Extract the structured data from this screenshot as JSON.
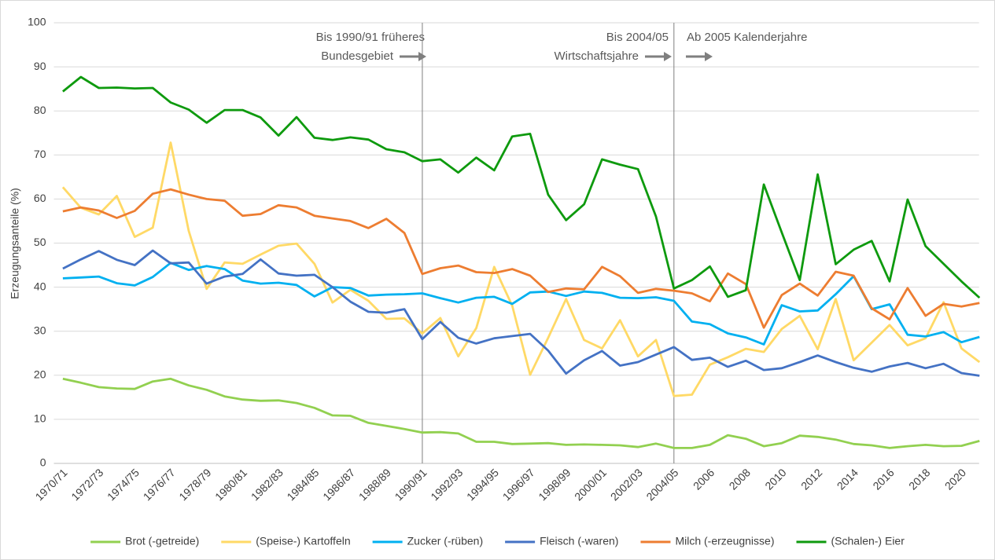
{
  "chart_data": {
    "type": "line",
    "y_label": "Erzeugungsanteile (%)",
    "annotations": [
      "Bis 1990/91 früheres",
      "Bundesgebiet",
      "Bis 2004/05",
      "Wirtschaftsjahre",
      "Ab 2005 Kalenderjahre"
    ],
    "dividers": [
      "1990/91",
      "2004/05"
    ],
    "categories": [
      "1970/71",
      null,
      "1972/73",
      null,
      "1974/75",
      null,
      "1976/77",
      null,
      "1978/79",
      null,
      "1980/81",
      null,
      "1982/83",
      null,
      "1984/85",
      null,
      "1986/87",
      null,
      "1988/89",
      null,
      "1990/91",
      null,
      "1992/93",
      null,
      "1994/95",
      null,
      "1996/97",
      null,
      "1998/99",
      null,
      "2000/01",
      null,
      "2002/03",
      null,
      "2004/05",
      null,
      "2006",
      null,
      "2008",
      null,
      "2010",
      null,
      "2012",
      null,
      "2014",
      null,
      "2016",
      null,
      "2018",
      null,
      "2020",
      null
    ],
    "ylim": [
      0,
      100
    ],
    "yticks": [
      0,
      10,
      20,
      30,
      40,
      50,
      60,
      70,
      80,
      90,
      100
    ],
    "grid": true,
    "legend": "bottom",
    "series": [
      {
        "name": "Brot (-getreide)",
        "color": "#92d050",
        "values": [
          19.2,
          18.3,
          17.3,
          17.0,
          16.9,
          18.6,
          19.2,
          17.7,
          16.7,
          15.2,
          14.5,
          14.2,
          14.3,
          13.7,
          12.6,
          10.9,
          10.8,
          9.2,
          8.5,
          7.8,
          7.0,
          7.1,
          6.8,
          4.9,
          4.9,
          4.4,
          4.5,
          4.6,
          4.2,
          4.3,
          4.2,
          4.1,
          3.7,
          4.5,
          3.5,
          3.5,
          4.2,
          6.4,
          5.6,
          3.9,
          4.6,
          6.3,
          6.0,
          5.4,
          4.4,
          4.1,
          3.5,
          3.9,
          4.2,
          3.9,
          4.0,
          5.1
        ]
      },
      {
        "name": "(Speise-) Kartoffeln",
        "color": "#ffd966",
        "values": [
          62.7,
          58.0,
          56.5,
          60.7,
          51.4,
          53.5,
          72.8,
          52.8,
          39.6,
          45.6,
          45.3,
          47.4,
          49.4,
          49.9,
          45.3,
          36.5,
          39.4,
          36.9,
          32.8,
          32.9,
          29.5,
          33.0,
          24.3,
          30.7,
          44.6,
          35.8,
          20.1,
          28.5,
          37.3,
          28.0,
          26.1,
          32.5,
          24.3,
          28.0,
          15.3,
          15.6,
          22.4,
          24.1,
          26.0,
          25.3,
          30.5,
          33.5,
          25.9,
          37.3,
          23.4,
          27.4,
          31.4,
          26.8,
          28.4,
          36.6,
          26.1,
          23.0
        ]
      },
      {
        "name": "Zucker (-rüben)",
        "color": "#00b0f0",
        "values": [
          42.0,
          42.2,
          42.4,
          40.9,
          40.4,
          42.3,
          45.5,
          43.9,
          44.8,
          44.1,
          41.5,
          40.8,
          41.0,
          40.5,
          37.9,
          40.0,
          39.8,
          38.1,
          38.3,
          38.4,
          38.6,
          37.5,
          36.5,
          37.6,
          37.8,
          36.2,
          38.8,
          39.0,
          38.0,
          39.0,
          38.7,
          37.6,
          37.5,
          37.7,
          36.9,
          32.2,
          31.6,
          29.5,
          28.6,
          27.0,
          35.9,
          34.5,
          34.7,
          38.4,
          42.5,
          35.0,
          36.1,
          29.2,
          28.8,
          29.8,
          27.5,
          28.7
        ]
      },
      {
        "name": "Fleisch (-waren)",
        "color": "#4472c4",
        "values": [
          44.2,
          46.3,
          48.2,
          46.2,
          45.0,
          48.3,
          45.4,
          45.6,
          40.8,
          42.4,
          43.0,
          46.3,
          43.1,
          42.6,
          42.8,
          40.0,
          36.7,
          34.4,
          34.2,
          35.0,
          28.2,
          32.1,
          28.5,
          27.2,
          28.4,
          28.9,
          29.4,
          25.6,
          20.4,
          23.4,
          25.5,
          22.2,
          23.0,
          24.7,
          26.4,
          23.5,
          24.0,
          21.9,
          23.3,
          21.2,
          21.6,
          23.0,
          24.5,
          23.0,
          21.7,
          20.8,
          22.0,
          22.8,
          21.6,
          22.6,
          20.5,
          19.9
        ]
      },
      {
        "name": "Milch (-erzeugnisse)",
        "color": "#ed7d31",
        "values": [
          57.2,
          58.1,
          57.4,
          55.7,
          57.3,
          61.2,
          62.2,
          61.0,
          60.0,
          59.6,
          56.2,
          56.6,
          58.6,
          58.1,
          56.2,
          55.6,
          55.0,
          53.4,
          55.5,
          52.3,
          43.0,
          44.3,
          44.9,
          43.4,
          43.2,
          44.1,
          42.6,
          38.9,
          39.7,
          39.5,
          44.6,
          42.5,
          38.7,
          39.6,
          39.2,
          38.6,
          36.8,
          43.1,
          40.7,
          30.8,
          38.2,
          40.8,
          38.1,
          43.5,
          42.6,
          35.2,
          32.7,
          39.8,
          33.5,
          36.2,
          35.6,
          36.4
        ]
      },
      {
        "name": "(Schalen-) Eier",
        "color": "#0e9a0e",
        "values": [
          84.4,
          87.7,
          85.2,
          85.3,
          85.1,
          85.2,
          81.9,
          80.3,
          77.3,
          80.2,
          80.2,
          78.5,
          74.4,
          78.6,
          73.9,
          73.4,
          74.0,
          73.5,
          71.3,
          70.6,
          68.6,
          69.0,
          66.0,
          69.4,
          66.5,
          74.2,
          74.8,
          61.0,
          55.2,
          58.8,
          69.0,
          67.8,
          66.8,
          56.0,
          39.7,
          41.6,
          44.7,
          37.8,
          39.3,
          63.3,
          52.4,
          41.6,
          65.6,
          45.2,
          48.5,
          50.5,
          41.3,
          59.9,
          49.3,
          45.3,
          41.3,
          37.6
        ]
      }
    ]
  }
}
